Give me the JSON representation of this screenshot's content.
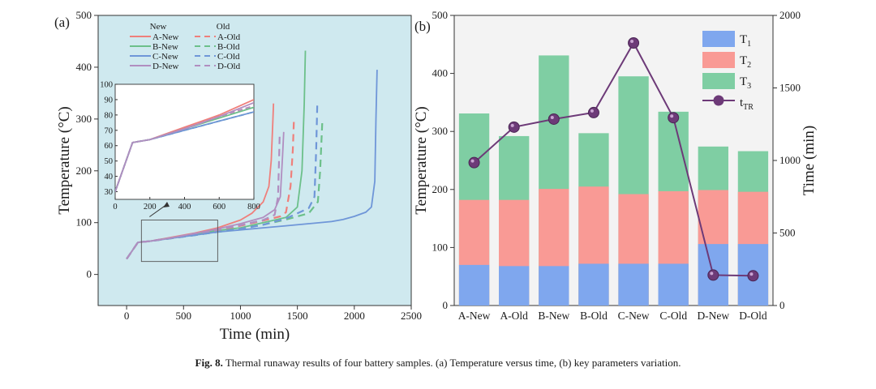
{
  "caption": {
    "label": "Fig. 8.",
    "text": "Thermal runaway results of four battery samples. (a) Temperature versus time, (b) key parameters variation."
  },
  "colors": {
    "A": "#ef7f7b",
    "B": "#6cc08a",
    "C": "#6f96d8",
    "D": "#b18ec0",
    "T1": "#7fa7ee",
    "T2": "#f99a95",
    "T3": "#7fcea3",
    "tTR": "#6d3a78",
    "panelA_bg": "#cfe9ef",
    "panelB_bg": "#f3f3f3"
  },
  "chart_data": [
    {
      "panel_label": "(a)",
      "type": "line",
      "title": "Temperature versus time",
      "xlabel": "Time (min)",
      "ylabel": "Temperature (°C)",
      "xlim": [
        -250,
        2500
      ],
      "ylim": [
        -60,
        500
      ],
      "xticks": [
        "0",
        "500",
        "1000",
        "1500",
        "2000",
        "2500"
      ],
      "yticks": [
        "0",
        "100",
        "200",
        "300",
        "400",
        "500"
      ],
      "legend_headers": [
        "New",
        "Old"
      ],
      "series": [
        {
          "name": "A-New",
          "group": "A",
          "style": "solid",
          "x": [
            0,
            100,
            200,
            400,
            600,
            800,
            1000,
            1100,
            1200,
            1250,
            1270,
            1285,
            1290
          ],
          "y": [
            30,
            62,
            64,
            72,
            80,
            90,
            105,
            118,
            140,
            170,
            220,
            300,
            330
          ]
        },
        {
          "name": "B-New",
          "group": "B",
          "style": "solid",
          "x": [
            0,
            100,
            200,
            400,
            600,
            800,
            1000,
            1200,
            1400,
            1500,
            1540,
            1560,
            1570
          ],
          "y": [
            30,
            62,
            64,
            71,
            78,
            85,
            90,
            100,
            110,
            130,
            200,
            330,
            432
          ]
        },
        {
          "name": "C-New",
          "group": "C",
          "style": "solid",
          "x": [
            0,
            100,
            200,
            400,
            600,
            800,
            1000,
            1200,
            1400,
            1600,
            1800,
            1900,
            2000,
            2100,
            2150,
            2180,
            2190,
            2200
          ],
          "y": [
            30,
            62,
            64,
            70,
            76,
            82,
            86,
            90,
            94,
            98,
            102,
            106,
            112,
            120,
            130,
            180,
            300,
            395
          ]
        },
        {
          "name": "D-New",
          "group": "D",
          "style": "solid",
          "x": [
            0,
            100,
            200,
            400,
            600,
            800,
            1000,
            1200,
            1300,
            1350,
            1370,
            1380
          ],
          "y": [
            30,
            62,
            64,
            71,
            79,
            88,
            98,
            110,
            125,
            150,
            230,
            275
          ]
        },
        {
          "name": "A-Old",
          "group": "A",
          "style": "dashed",
          "x": [
            0,
            100,
            200,
            400,
            600,
            800,
            1000,
            1200,
            1350,
            1400,
            1440,
            1460,
            1470
          ],
          "y": [
            30,
            62,
            64,
            71,
            79,
            86,
            94,
            104,
            112,
            120,
            170,
            240,
            300
          ]
        },
        {
          "name": "B-Old",
          "group": "B",
          "style": "dashed",
          "x": [
            0,
            100,
            200,
            400,
            600,
            800,
            1000,
            1200,
            1400,
            1600,
            1680,
            1700,
            1720
          ],
          "y": [
            30,
            62,
            64,
            70,
            76,
            82,
            88,
            96,
            106,
            118,
            140,
            200,
            300
          ]
        },
        {
          "name": "C-Old",
          "group": "C",
          "style": "dashed",
          "x": [
            0,
            100,
            200,
            400,
            600,
            800,
            1000,
            1200,
            1400,
            1600,
            1650,
            1665,
            1675
          ],
          "y": [
            30,
            62,
            64,
            70,
            76,
            82,
            88,
            96,
            108,
            128,
            150,
            240,
            330
          ]
        },
        {
          "name": "D-Old",
          "group": "D",
          "style": "dashed",
          "x": [
            0,
            100,
            200,
            400,
            600,
            800,
            1000,
            1200,
            1300,
            1330,
            1340,
            1345
          ],
          "y": [
            30,
            62,
            64,
            71,
            79,
            86,
            95,
            105,
            115,
            150,
            230,
            275
          ]
        }
      ],
      "zoom_box": {
        "x": [
          130,
          800
        ],
        "y": [
          25,
          105
        ]
      },
      "inset": {
        "xlim": [
          0,
          800
        ],
        "ylim": [
          25,
          100
        ],
        "xticks": [
          "0",
          "200",
          "400",
          "600",
          "800"
        ],
        "yticks": [
          "30",
          "40",
          "50",
          "60",
          "70",
          "80",
          "90",
          "100"
        ]
      }
    },
    {
      "panel_label": "(b)",
      "type": "bar",
      "title": "Key parameters variation",
      "ylabel": "Temperature (°C)",
      "ylabel_right": "Time (min)",
      "ylim": [
        0,
        500
      ],
      "ylim_right": [
        0,
        2000
      ],
      "yticks": [
        "0",
        "100",
        "200",
        "300",
        "400",
        "500"
      ],
      "yticks_right": [
        "0",
        "500",
        "1000",
        "1500",
        "2000"
      ],
      "categories": [
        "A-New",
        "A-Old",
        "B-New",
        "B-Old",
        "C-New",
        "C-Old",
        "D-New",
        "D-Old"
      ],
      "series": [
        {
          "name": "T1",
          "key": "T1",
          "values": [
            70,
            68,
            68,
            72,
            72,
            72,
            106,
            106
          ]
        },
        {
          "name": "T2",
          "key": "T2",
          "values": [
            182,
            182,
            201,
            205,
            192,
            197,
            199,
            196
          ]
        },
        {
          "name": "T3",
          "key": "T3",
          "values": [
            331,
            292,
            431,
            297,
            395,
            334,
            274,
            266
          ]
        }
      ],
      "line_series": {
        "name": "tTR",
        "key": "tTR",
        "axis": "right",
        "values": [
          985,
          1230,
          1285,
          1330,
          1810,
          1295,
          210,
          205
        ]
      },
      "legend": [
        {
          "key": "T1",
          "base": "T",
          "sub": "1"
        },
        {
          "key": "T2",
          "base": "T",
          "sub": "2"
        },
        {
          "key": "T3",
          "base": "T",
          "sub": "3"
        },
        {
          "key": "tTR",
          "base": "t",
          "sub": "TR"
        }
      ]
    }
  ]
}
